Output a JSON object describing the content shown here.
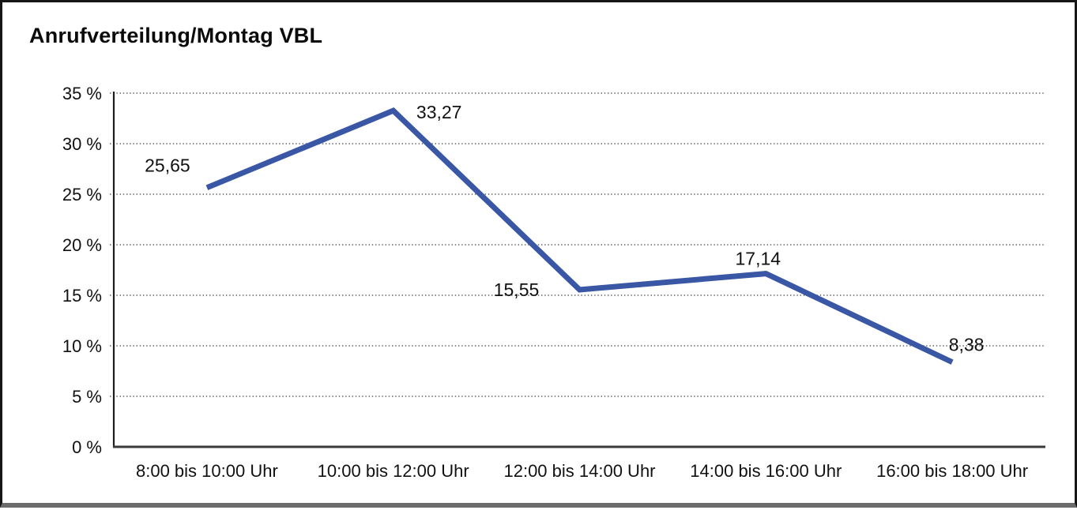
{
  "title": "Anrufverteilung/Montag VBL",
  "chart_data": {
    "type": "line",
    "title": "Anrufverteilung/Montag VBL",
    "categories": [
      "8:00 bis 10:00 Uhr",
      "10:00 bis 12:00 Uhr",
      "12:00 bis 14:00 Uhr",
      "14:00 bis 16:00 Uhr",
      "16:00 bis 18:00 Uhr"
    ],
    "values": [
      25.65,
      33.27,
      15.55,
      17.14,
      8.38
    ],
    "value_labels": [
      "25,65",
      "33,27",
      "15,55",
      "17,14",
      "8,38"
    ],
    "xlabel": "",
    "ylabel": "",
    "ylim": [
      0,
      35
    ],
    "y_ticks": [
      {
        "value": 35,
        "label": "35 %"
      },
      {
        "value": 30,
        "label": "30 %"
      },
      {
        "value": 25,
        "label": "25 %"
      },
      {
        "value": 20,
        "label": "20 %"
      },
      {
        "value": 15,
        "label": "15 %"
      },
      {
        "value": 10,
        "label": "10 %"
      },
      {
        "value": 5,
        "label": "5 %"
      },
      {
        "value": 0,
        "label": "0 %"
      }
    ],
    "grid": "horizontal-dotted",
    "legend": "none",
    "colors": {
      "line": "#3A57A6",
      "axis": "#1c1c1c",
      "x_axis": "#3a3a3a",
      "grid_dots": "#5f5f5f",
      "text": "#111111"
    }
  }
}
